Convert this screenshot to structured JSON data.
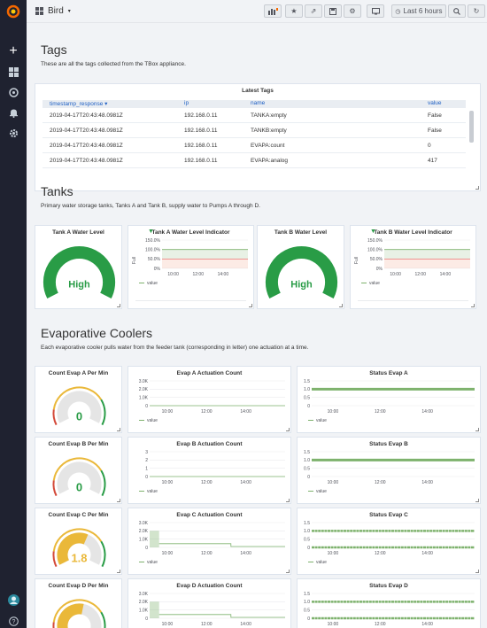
{
  "topbar": {
    "dashboard_title": "Bird",
    "time_range": "Last 6 hours"
  },
  "rows": {
    "tags": {
      "title": "Tags",
      "description": "These are all the tags collected from the TBox appliance."
    },
    "tanks": {
      "title": "Tanks",
      "description": "Primary water storage tanks, Tanks A and Tank B, supply water to Pumps A through D."
    },
    "evap": {
      "title": "Evaporative Coolers",
      "description": "Each evaporative cooler pulls water from the feeder tank (corresponding in letter) one actuation at a time."
    }
  },
  "latest_tags": {
    "title": "Latest Tags",
    "columns": [
      "timestamp_response ▾",
      "ip",
      "name",
      "value"
    ],
    "rows": [
      [
        "2019-04-17T20:43:48.0981Z",
        "192.168.0.11",
        "TANKA:empty",
        "False"
      ],
      [
        "2019-04-17T20:43:48.0981Z",
        "192.168.0.11",
        "TANKB:empty",
        "False"
      ],
      [
        "2019-04-17T20:43:48.0981Z",
        "192.168.0.11",
        "EVAPA:count",
        "0"
      ],
      [
        "2019-04-17T20:43:48.0981Z",
        "192.168.0.11",
        "EVAPA:analog",
        "417"
      ]
    ]
  },
  "tanks": {
    "a_gauge": {
      "title": "Tank A Water Level",
      "value": "High"
    },
    "a_chart": {
      "title": "Tank A Water Level Indicator",
      "yticks": [
        "150.0%",
        "100.0%",
        "50.0%",
        "0%"
      ],
      "ylabel": "Full",
      "xticks": [
        "10:00",
        "12:00",
        "14:00"
      ],
      "legend": "value"
    },
    "b_gauge": {
      "title": "Tank B Water Level",
      "value": "High"
    },
    "b_chart": {
      "title": "Tank B Water Level Indicator",
      "yticks": [
        "150.0%",
        "100.0%",
        "50.0%",
        "0%"
      ],
      "ylabel": "Full",
      "xticks": [
        "10:00",
        "12:00",
        "14:00"
      ],
      "legend": "value"
    }
  },
  "evap": [
    {
      "count_title": "Count Evap A Per Min",
      "count_value": "0",
      "count_fill": 0.0,
      "act_title": "Evap A Actuation Count",
      "act_yticks": [
        "3.0K",
        "2.0K",
        "1.0K",
        "0"
      ],
      "status_title": "Status Evap A",
      "status_yticks": [
        "1.5",
        "1.0",
        "0.5",
        "0"
      ]
    },
    {
      "count_title": "Count Evap B Per Min",
      "count_value": "0",
      "count_fill": 0.0,
      "act_title": "Evap B Actuation Count",
      "act_yticks": [
        "3",
        "2",
        "1",
        "0"
      ],
      "status_title": "Status Evap B",
      "status_yticks": [
        "1.5",
        "1.0",
        "0.5",
        "0"
      ]
    },
    {
      "count_title": "Count Evap C Per Min",
      "count_value": "1.8",
      "count_fill": 0.6,
      "act_title": "Evap C Actuation Count",
      "act_yticks": [
        "3.0K",
        "2.0K",
        "1.0K",
        "0"
      ],
      "status_title": "Status Evap C",
      "status_yticks": [
        "1.5",
        "1.0",
        "0.5",
        "0"
      ]
    },
    {
      "count_title": "Count Evap D Per Min",
      "count_value": "",
      "count_fill": 0.55,
      "act_title": "Evap D Actuation Count",
      "act_yticks": [
        "3.0K",
        "2.0K",
        "1.0K",
        "0"
      ],
      "status_title": "Status Evap D",
      "status_yticks": [
        "1.5",
        "1.0",
        "0.5",
        "0"
      ]
    }
  ],
  "common": {
    "xticks": [
      "10:00",
      "12:00",
      "14:00"
    ],
    "legend": "value"
  },
  "colors": {
    "green": "#299c46",
    "light_green": "#7eb26d",
    "orange": "#eab839",
    "red": "#d44a3a",
    "sidebar": "#1f2230"
  }
}
